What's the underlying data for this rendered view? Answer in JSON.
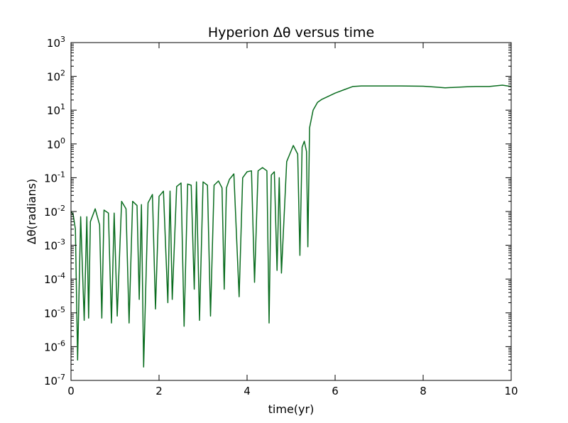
{
  "chart_data": {
    "type": "line",
    "title": "Hyperion Δθ versus time",
    "xlabel": "time(yr)",
    "ylabel": "Δθ(radians)",
    "xlim": [
      0,
      10
    ],
    "ylim_exponent": [
      -7,
      3
    ],
    "yscale": "log",
    "grid": false,
    "x_ticks": [
      "0",
      "2",
      "4",
      "6",
      "8",
      "10"
    ],
    "y_ticks": [
      {
        "base": "10",
        "exp": "-7"
      },
      {
        "base": "10",
        "exp": "-6"
      },
      {
        "base": "10",
        "exp": "-5"
      },
      {
        "base": "10",
        "exp": "-4"
      },
      {
        "base": "10",
        "exp": "-3"
      },
      {
        "base": "10",
        "exp": "-2"
      },
      {
        "base": "10",
        "exp": "-1"
      },
      {
        "base": "10",
        "exp": "0"
      },
      {
        "base": "10",
        "exp": "1"
      },
      {
        "base": "10",
        "exp": "2"
      },
      {
        "base": "10",
        "exp": "3"
      }
    ],
    "series": [
      {
        "color": "#0a6d1f",
        "x": [
          0.0,
          0.05,
          0.1,
          0.15,
          0.22,
          0.3,
          0.36,
          0.4,
          0.44,
          0.55,
          0.65,
          0.7,
          0.75,
          0.85,
          0.92,
          0.98,
          1.05,
          1.15,
          1.25,
          1.32,
          1.4,
          1.5,
          1.55,
          1.6,
          1.65,
          1.75,
          1.85,
          1.92,
          2.0,
          2.1,
          2.2,
          2.25,
          2.3,
          2.4,
          2.5,
          2.57,
          2.65,
          2.73,
          2.8,
          2.85,
          2.92,
          3.0,
          3.1,
          3.17,
          3.25,
          3.35,
          3.43,
          3.48,
          3.53,
          3.6,
          3.7,
          3.82,
          3.9,
          4.0,
          4.1,
          4.17,
          4.25,
          4.35,
          4.45,
          4.5,
          4.55,
          4.62,
          4.68,
          4.73,
          4.78,
          4.9,
          5.05,
          5.15,
          5.2,
          5.25,
          5.3,
          5.35,
          5.38,
          5.42,
          5.5,
          5.6,
          5.7,
          5.8,
          6.0,
          6.2,
          6.4,
          6.6,
          7.0,
          7.5,
          8.0,
          8.3,
          8.5,
          9.0,
          9.2,
          9.5,
          9.8,
          10.0
        ],
        "y": [
          0.01,
          0.008,
          0.003,
          4e-07,
          0.007,
          6e-06,
          0.007,
          7e-06,
          0.005,
          0.012,
          0.004,
          7e-06,
          0.011,
          0.009,
          5e-06,
          0.009,
          8e-06,
          0.02,
          0.012,
          5e-06,
          0.02,
          0.015,
          2.5e-05,
          0.016,
          2.5e-07,
          0.018,
          0.032,
          1.3e-05,
          0.028,
          0.04,
          2e-05,
          0.04,
          2.5e-05,
          0.055,
          0.07,
          4e-06,
          0.065,
          0.06,
          5e-05,
          0.075,
          6e-06,
          0.075,
          0.06,
          8e-06,
          0.06,
          0.08,
          0.05,
          5e-05,
          0.05,
          0.09,
          0.13,
          3e-05,
          0.1,
          0.15,
          0.16,
          8e-05,
          0.16,
          0.2,
          0.16,
          5e-06,
          0.12,
          0.15,
          0.00018,
          0.1,
          0.00015,
          0.3,
          0.9,
          0.5,
          0.0005,
          0.8,
          1.2,
          0.6,
          0.0009,
          3,
          10,
          17,
          21,
          24,
          32,
          40,
          50,
          52,
          52,
          52,
          51,
          48,
          46,
          49,
          50,
          50,
          55,
          50
        ]
      }
    ]
  }
}
